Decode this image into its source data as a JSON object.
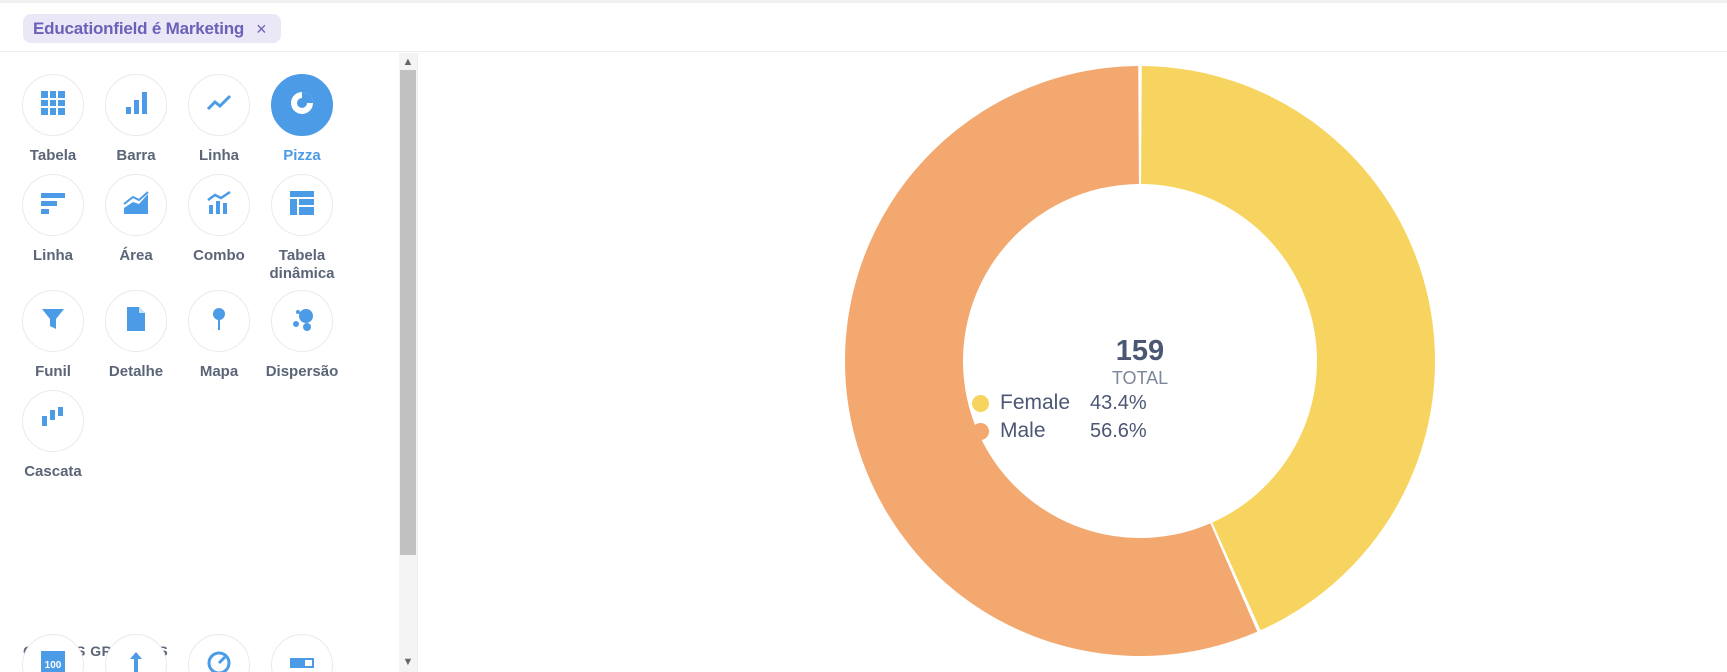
{
  "filter": {
    "label": "Educationfield é Marketing",
    "close": "×"
  },
  "colors": {
    "accent": "#4c9be6",
    "female": "#f7d45f",
    "male": "#f2a86f",
    "icon": "#4c9be6"
  },
  "visualizations": [
    {
      "key": "table",
      "label": "Tabela",
      "icon": "table-icon"
    },
    {
      "key": "bar",
      "label": "Barra",
      "icon": "bar-chart-icon"
    },
    {
      "key": "line",
      "label": "Linha",
      "icon": "line-chart-icon"
    },
    {
      "key": "pie",
      "label": "Pizza",
      "icon": "pie-chart-icon",
      "active": true
    },
    {
      "key": "row",
      "label": "Linha",
      "icon": "row-chart-icon"
    },
    {
      "key": "area",
      "label": "Área",
      "icon": "area-chart-icon"
    },
    {
      "key": "combo",
      "label": "Combo",
      "icon": "combo-chart-icon"
    },
    {
      "key": "pivot",
      "label": "Tabela dinâmica",
      "icon": "pivot-table-icon"
    },
    {
      "key": "funnel",
      "label": "Funil",
      "icon": "funnel-icon"
    },
    {
      "key": "detail",
      "label": "Detalhe",
      "icon": "document-icon"
    },
    {
      "key": "map",
      "label": "Mapa",
      "icon": "map-pin-icon"
    },
    {
      "key": "scatter",
      "label": "Dispersão",
      "icon": "scatter-icon"
    },
    {
      "key": "waterfall",
      "label": "Cascata",
      "icon": "waterfall-icon"
    }
  ],
  "other_section": {
    "title": "OUTROS GRÁFICOS",
    "icons": [
      "number-icon",
      "trend-icon",
      "gauge-icon",
      "progress-icon"
    ],
    "number_glyph": "100"
  },
  "chart_data": {
    "type": "pie",
    "categories": [
      "Female",
      "Male"
    ],
    "values": [
      69,
      90
    ],
    "percent_labels": [
      "43.4%",
      "56.6%"
    ],
    "total": "159",
    "total_label": "TOTAL"
  }
}
